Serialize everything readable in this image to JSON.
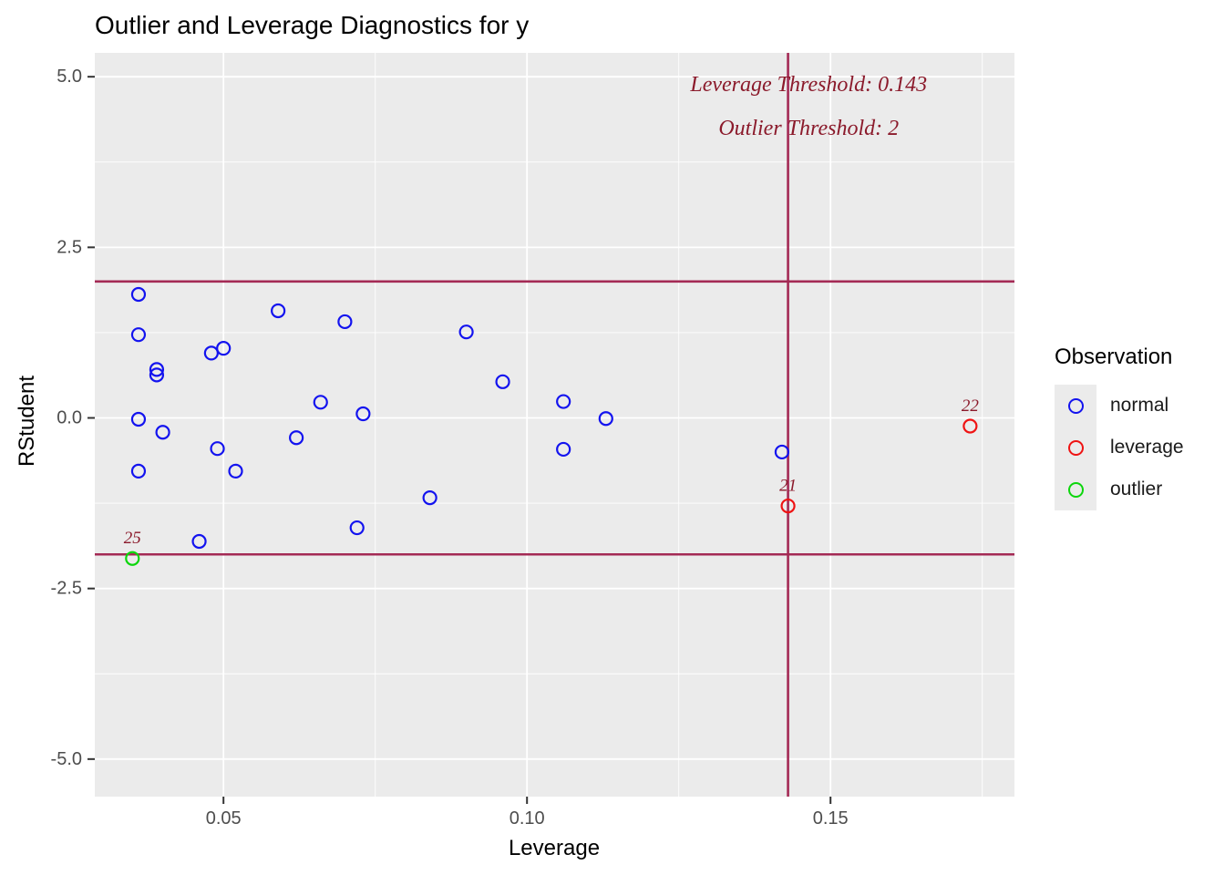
{
  "chart_data": {
    "type": "scatter",
    "title": "Outlier and Leverage Diagnostics for y",
    "xlabel": "Leverage",
    "ylabel": "RStudent",
    "xlim": [
      0.0288,
      0.1803
    ],
    "ylim": [
      -5.55,
      5.35
    ],
    "grid": true,
    "panel_bg": "#EBEBEB",
    "grid_color": "#FFFFFF",
    "tick_label_color": "#4D4D4D",
    "x_ticks": {
      "values": [
        0.05,
        0.1,
        0.15
      ],
      "labels": [
        "0.05",
        "0.10",
        "0.15"
      ],
      "minor": [
        0.075,
        0.125,
        0.175
      ]
    },
    "y_ticks": {
      "values": [
        5.0,
        2.5,
        0.0,
        -2.5,
        -5.0
      ],
      "labels": [
        "5.0",
        "2.5",
        "0.0",
        "-2.5",
        "-5.0"
      ],
      "minor": [
        3.75,
        1.25,
        -1.25,
        -3.75
      ]
    },
    "thresholds": {
      "leverage_value": 0.143,
      "outlier_value": 2,
      "outlier_lines": [
        2,
        -2
      ],
      "line_color": "#A42A55",
      "text_color": "#8B1A2B"
    },
    "annotations": [
      {
        "text": "Leverage Threshold: 0.143",
        "x": 0.1464,
        "y": 4.88
      },
      {
        "text": "Outlier Threshold: 2",
        "x": 0.1464,
        "y": 4.24
      }
    ],
    "legend": {
      "title": "Observation",
      "position": "right",
      "entries": [
        {
          "label": "normal",
          "color": "#1313EF"
        },
        {
          "label": "leverage",
          "color": "#EF1313"
        },
        {
          "label": "outlier",
          "color": "#0CD60C"
        }
      ]
    },
    "series": [
      {
        "name": "normal",
        "color": "#1313EF",
        "points": [
          {
            "x": 0.036,
            "y": 1.81
          },
          {
            "x": 0.059,
            "y": 1.57
          },
          {
            "x": 0.07,
            "y": 1.41
          },
          {
            "x": 0.09,
            "y": 1.26
          },
          {
            "x": 0.036,
            "y": 1.22
          },
          {
            "x": 0.05,
            "y": 1.02
          },
          {
            "x": 0.048,
            "y": 0.95
          },
          {
            "x": 0.039,
            "y": 0.71
          },
          {
            "x": 0.039,
            "y": 0.63
          },
          {
            "x": 0.096,
            "y": 0.53
          },
          {
            "x": 0.106,
            "y": 0.24
          },
          {
            "x": 0.066,
            "y": 0.23
          },
          {
            "x": 0.073,
            "y": 0.06
          },
          {
            "x": 0.113,
            "y": -0.01
          },
          {
            "x": 0.036,
            "y": -0.02
          },
          {
            "x": 0.04,
            "y": -0.21
          },
          {
            "x": 0.062,
            "y": -0.29
          },
          {
            "x": 0.049,
            "y": -0.45
          },
          {
            "x": 0.106,
            "y": -0.46
          },
          {
            "x": 0.142,
            "y": -0.5
          },
          {
            "x": 0.052,
            "y": -0.78
          },
          {
            "x": 0.036,
            "y": -0.78
          },
          {
            "x": 0.084,
            "y": -1.17
          },
          {
            "x": 0.072,
            "y": -1.61
          },
          {
            "x": 0.046,
            "y": -1.81
          }
        ]
      },
      {
        "name": "leverage",
        "color": "#EF1313",
        "points": [
          {
            "x": 0.143,
            "y": -1.29,
            "label": "21"
          },
          {
            "x": 0.173,
            "y": -0.12,
            "label": "22"
          }
        ]
      },
      {
        "name": "outlier",
        "color": "#0CD60C",
        "points": [
          {
            "x": 0.035,
            "y": -2.06,
            "label": "25"
          }
        ]
      }
    ]
  }
}
